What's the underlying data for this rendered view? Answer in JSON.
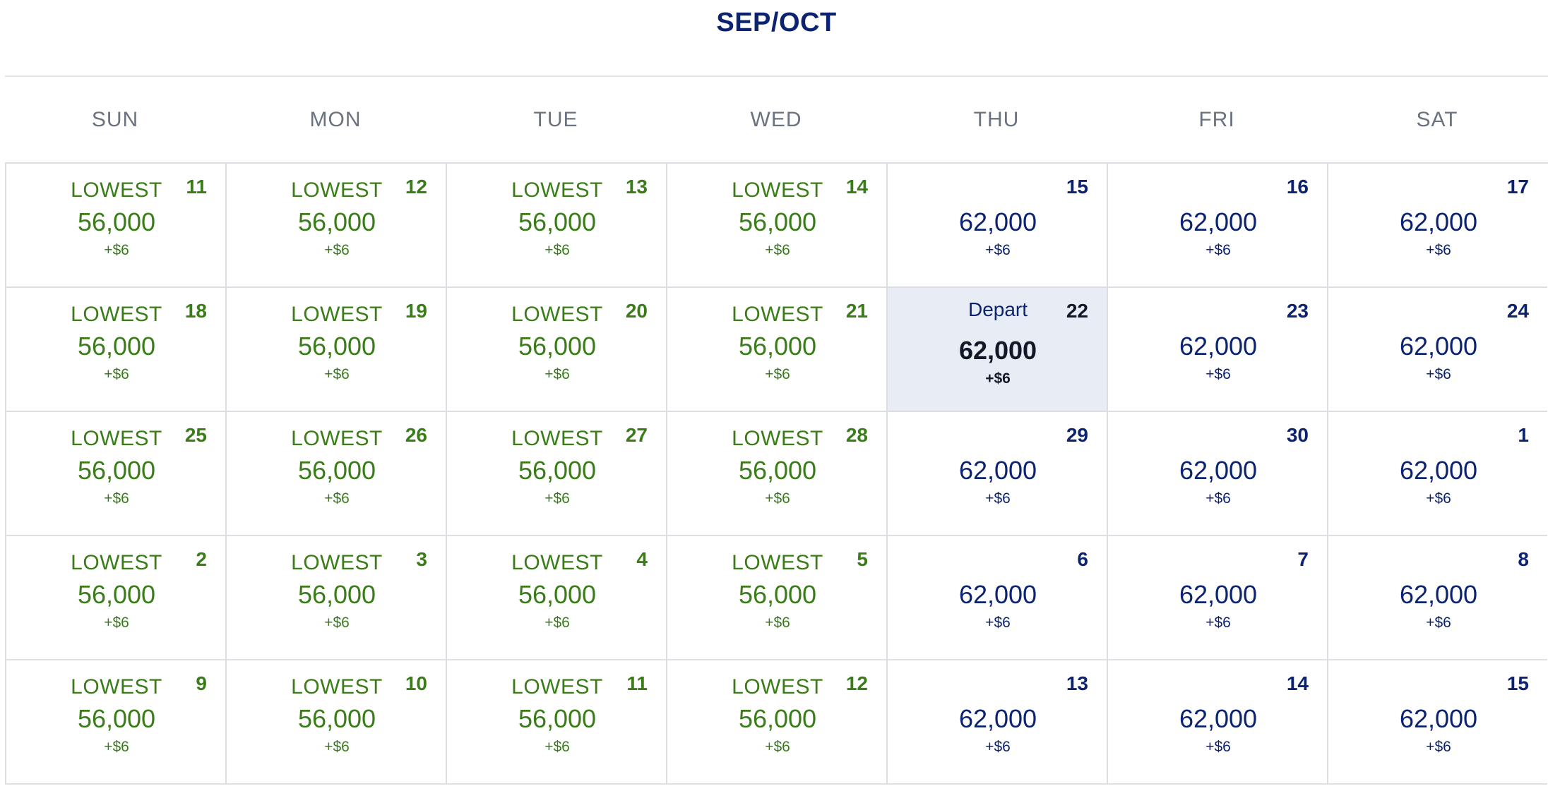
{
  "calendar": {
    "title": "SEP/OCT",
    "weekdays": [
      "SUN",
      "MON",
      "TUE",
      "WED",
      "THU",
      "FRI",
      "SAT"
    ],
    "lowest_label": "LOWEST",
    "depart_label": "Depart",
    "colors": {
      "title": "#0c2372",
      "lowest_green": "#3a7d18",
      "selected_bg": "#e8ecf4",
      "weekday_gray": "#6b7380"
    },
    "weeks": [
      [
        {
          "day": "11",
          "points": "56,000",
          "fees": "+$6",
          "lowest": true
        },
        {
          "day": "12",
          "points": "56,000",
          "fees": "+$6",
          "lowest": true
        },
        {
          "day": "13",
          "points": "56,000",
          "fees": "+$6",
          "lowest": true
        },
        {
          "day": "14",
          "points": "56,000",
          "fees": "+$6",
          "lowest": true
        },
        {
          "day": "15",
          "points": "62,000",
          "fees": "+$6",
          "lowest": false
        },
        {
          "day": "16",
          "points": "62,000",
          "fees": "+$6",
          "lowest": false
        },
        {
          "day": "17",
          "points": "62,000",
          "fees": "+$6",
          "lowest": false
        }
      ],
      [
        {
          "day": "18",
          "points": "56,000",
          "fees": "+$6",
          "lowest": true
        },
        {
          "day": "19",
          "points": "56,000",
          "fees": "+$6",
          "lowest": true
        },
        {
          "day": "20",
          "points": "56,000",
          "fees": "+$6",
          "lowest": true
        },
        {
          "day": "21",
          "points": "56,000",
          "fees": "+$6",
          "lowest": true
        },
        {
          "day": "22",
          "points": "62,000",
          "fees": "+$6",
          "lowest": false,
          "selected": true
        },
        {
          "day": "23",
          "points": "62,000",
          "fees": "+$6",
          "lowest": false
        },
        {
          "day": "24",
          "points": "62,000",
          "fees": "+$6",
          "lowest": false
        }
      ],
      [
        {
          "day": "25",
          "points": "56,000",
          "fees": "+$6",
          "lowest": true
        },
        {
          "day": "26",
          "points": "56,000",
          "fees": "+$6",
          "lowest": true
        },
        {
          "day": "27",
          "points": "56,000",
          "fees": "+$6",
          "lowest": true
        },
        {
          "day": "28",
          "points": "56,000",
          "fees": "+$6",
          "lowest": true
        },
        {
          "day": "29",
          "points": "62,000",
          "fees": "+$6",
          "lowest": false
        },
        {
          "day": "30",
          "points": "62,000",
          "fees": "+$6",
          "lowest": false
        },
        {
          "day": "1",
          "points": "62,000",
          "fees": "+$6",
          "lowest": false
        }
      ],
      [
        {
          "day": "2",
          "points": "56,000",
          "fees": "+$6",
          "lowest": true
        },
        {
          "day": "3",
          "points": "56,000",
          "fees": "+$6",
          "lowest": true
        },
        {
          "day": "4",
          "points": "56,000",
          "fees": "+$6",
          "lowest": true
        },
        {
          "day": "5",
          "points": "56,000",
          "fees": "+$6",
          "lowest": true
        },
        {
          "day": "6",
          "points": "62,000",
          "fees": "+$6",
          "lowest": false
        },
        {
          "day": "7",
          "points": "62,000",
          "fees": "+$6",
          "lowest": false
        },
        {
          "day": "8",
          "points": "62,000",
          "fees": "+$6",
          "lowest": false
        }
      ],
      [
        {
          "day": "9",
          "points": "56,000",
          "fees": "+$6",
          "lowest": true
        },
        {
          "day": "10",
          "points": "56,000",
          "fees": "+$6",
          "lowest": true
        },
        {
          "day": "11",
          "points": "56,000",
          "fees": "+$6",
          "lowest": true
        },
        {
          "day": "12",
          "points": "56,000",
          "fees": "+$6",
          "lowest": true
        },
        {
          "day": "13",
          "points": "62,000",
          "fees": "+$6",
          "lowest": false
        },
        {
          "day": "14",
          "points": "62,000",
          "fees": "+$6",
          "lowest": false
        },
        {
          "day": "15",
          "points": "62,000",
          "fees": "+$6",
          "lowest": false
        }
      ]
    ]
  }
}
